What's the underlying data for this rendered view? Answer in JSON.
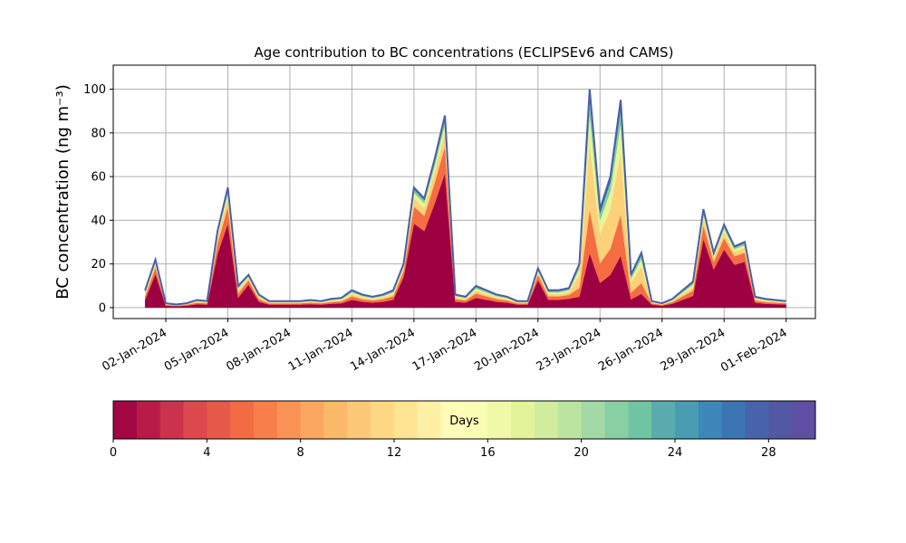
{
  "chart_data": {
    "type": "stacked_area",
    "title": "Age contribution to BC concentrations (ECLIPSEv6 and CAMS)",
    "y_label": "BC concentration (ng m⁻³)",
    "x": [
      "2024-01-01T00:00",
      "2024-01-01T12:00",
      "2024-01-02T00:00",
      "2024-01-02T12:00",
      "2024-01-03T00:00",
      "2024-01-03T12:00",
      "2024-01-04T00:00",
      "2024-01-04T12:00",
      "2024-01-05T00:00",
      "2024-01-05T12:00",
      "2024-01-06T00:00",
      "2024-01-06T12:00",
      "2024-01-07T00:00",
      "2024-01-07T12:00",
      "2024-01-08T00:00",
      "2024-01-08T12:00",
      "2024-01-09T00:00",
      "2024-01-09T12:00",
      "2024-01-10T00:00",
      "2024-01-10T12:00",
      "2024-01-11T00:00",
      "2024-01-11T12:00",
      "2024-01-12T00:00",
      "2024-01-12T12:00",
      "2024-01-13T00:00",
      "2024-01-13T12:00",
      "2024-01-14T00:00",
      "2024-01-14T12:00",
      "2024-01-15T00:00",
      "2024-01-15T12:00",
      "2024-01-16T00:00",
      "2024-01-16T12:00",
      "2024-01-17T00:00",
      "2024-01-17T12:00",
      "2024-01-18T00:00",
      "2024-01-18T12:00",
      "2024-01-19T00:00",
      "2024-01-19T12:00",
      "2024-01-20T00:00",
      "2024-01-20T12:00",
      "2024-01-21T00:00",
      "2024-01-21T12:00",
      "2024-01-22T00:00",
      "2024-01-22T12:00",
      "2024-01-23T00:00",
      "2024-01-23T12:00",
      "2024-01-24T00:00",
      "2024-01-24T12:00",
      "2024-01-25T00:00",
      "2024-01-25T12:00",
      "2024-01-26T00:00",
      "2024-01-26T12:00",
      "2024-01-27T00:00",
      "2024-01-27T12:00",
      "2024-01-28T00:00",
      "2024-01-28T12:00",
      "2024-01-29T00:00",
      "2024-01-29T12:00",
      "2024-01-30T00:00",
      "2024-01-30T12:00",
      "2024-01-31T00:00",
      "2024-01-31T12:00",
      "2024-02-01T00:00"
    ],
    "series": [
      {
        "color": "#9e0142",
        "values": [
          3.6,
          15.4,
          0.9,
          0.7,
          0.9,
          1.6,
          1.4,
          24.5,
          38.5,
          4.5,
          10.5,
          2.7,
          1.4,
          1.4,
          1.4,
          1.4,
          1.6,
          1.4,
          1.8,
          2.0,
          3.6,
          2.7,
          2.3,
          2.7,
          3.6,
          14.0,
          38.5,
          35.0,
          47.6,
          61.6,
          2.7,
          2.3,
          4.5,
          3.6,
          2.7,
          2.3,
          1.4,
          1.4,
          12.6,
          3.6,
          3.6,
          4.1,
          5.0,
          25,
          11.3,
          15,
          23.8,
          3.8,
          6.3,
          1.4,
          0.9,
          1.8,
          3.6,
          5.4,
          31.5,
          17.5,
          26.6,
          19.6,
          21.0,
          2.3,
          1.8,
          1.6,
          1.4
        ]
      },
      {
        "color": "#f46d43",
        "values": [
          1.6,
          3.1,
          0.4,
          0.3,
          0.4,
          0.7,
          0.6,
          4.9,
          7.7,
          2.0,
          2.1,
          1.2,
          0.6,
          0.6,
          0.6,
          0.6,
          0.7,
          0.6,
          0.8,
          0.9,
          1.6,
          1.2,
          1.0,
          1.2,
          1.6,
          2.8,
          7.7,
          7.0,
          9.5,
          12.3,
          1.2,
          1.0,
          2.0,
          1.6,
          1.2,
          1.0,
          0.6,
          0.6,
          2.5,
          1.6,
          1.6,
          1.8,
          4.0,
          20,
          9.0,
          12,
          19.0,
          3.0,
          5.0,
          0.6,
          0.4,
          0.8,
          1.6,
          2.4,
          6.3,
          3.5,
          5.3,
          3.9,
          4.2,
          1.0,
          0.8,
          0.7,
          0.6
        ]
      },
      {
        "color": "#fdd07a",
        "values": [
          1.0,
          1.5,
          0.3,
          0.2,
          0.3,
          0.5,
          0.4,
          2.5,
          3.9,
          1.3,
          1.1,
          0.8,
          0.4,
          0.4,
          0.4,
          0.4,
          0.5,
          0.4,
          0.5,
          0.6,
          1.0,
          0.8,
          0.7,
          0.8,
          1.0,
          1.4,
          3.9,
          3.5,
          4.8,
          6.2,
          0.8,
          0.7,
          1.3,
          1.0,
          0.8,
          0.7,
          0.4,
          0.4,
          1.3,
          1.0,
          1.0,
          1.2,
          6.0,
          30,
          13.5,
          18,
          28.5,
          4.5,
          7.5,
          0.4,
          0.3,
          0.5,
          1.0,
          1.6,
          3.2,
          1.8,
          2.7,
          2.0,
          2.1,
          0.7,
          0.5,
          0.5,
          0.4
        ]
      },
      {
        "color": "#e6f598",
        "values": [
          0.8,
          1.0,
          0.2,
          0.1,
          0.2,
          0.3,
          0.3,
          1.6,
          2.5,
          1.0,
          0.7,
          0.6,
          0.3,
          0.3,
          0.3,
          0.3,
          0.3,
          0.3,
          0.4,
          0.5,
          0.8,
          0.6,
          0.5,
          0.6,
          0.8,
          0.9,
          2.5,
          2.3,
          3.1,
          4.0,
          0.6,
          0.5,
          1.0,
          0.8,
          0.6,
          0.5,
          0.3,
          0.3,
          0.8,
          0.8,
          0.8,
          0.9,
          2.8,
          14,
          6.3,
          8.4,
          13.3,
          2.1,
          3.5,
          0.3,
          0.2,
          0.4,
          0.8,
          1.2,
          2.0,
          1.1,
          1.7,
          1.3,
          1.4,
          0.5,
          0.4,
          0.3,
          0.3
        ]
      },
      {
        "color": "#7fcca4",
        "values": [
          0.6,
          0.7,
          0.1,
          0.1,
          0.1,
          0.2,
          0.2,
          1.0,
          1.6,
          0.7,
          0.4,
          0.4,
          0.2,
          0.2,
          0.2,
          0.2,
          0.2,
          0.2,
          0.3,
          0.3,
          0.6,
          0.4,
          0.3,
          0.4,
          0.6,
          0.6,
          1.6,
          1.5,
          2.0,
          2.6,
          0.4,
          0.3,
          0.7,
          0.6,
          0.4,
          0.3,
          0.2,
          0.2,
          0.5,
          0.6,
          0.6,
          0.6,
          1.4,
          7,
          3.2,
          4.2,
          6.7,
          1.1,
          1.8,
          0.2,
          0.1,
          0.3,
          0.6,
          0.8,
          1.4,
          0.8,
          1.1,
          0.8,
          0.9,
          0.3,
          0.3,
          0.2,
          0.2
        ]
      },
      {
        "color": "#4b65ae",
        "values": [
          0.4,
          0.3,
          0.1,
          0.1,
          0.1,
          0.2,
          0.1,
          0.5,
          0.8,
          0.5,
          0.2,
          0.3,
          0.1,
          0.1,
          0.1,
          0.1,
          0.2,
          0.1,
          0.2,
          0.2,
          0.4,
          0.3,
          0.2,
          0.3,
          0.4,
          0.3,
          0.8,
          0.7,
          1.0,
          1.3,
          0.3,
          0.2,
          0.5,
          0.4,
          0.3,
          0.2,
          0.1,
          0.1,
          0.3,
          0.4,
          0.4,
          0.4,
          0.8,
          4,
          1.8,
          2.4,
          3.8,
          0.6,
          1.0,
          0.1,
          0.1,
          0.2,
          0.4,
          0.6,
          0.7,
          0.4,
          0.6,
          0.4,
          0.5,
          0.2,
          0.2,
          0.2,
          0.1
        ]
      }
    ],
    "xlim": [
      "2023-12-30T11:00",
      "2024-02-02T10:00"
    ],
    "xticks": [
      {
        "value": "2024-01-02T00:00",
        "label": "02-Jan-2024"
      },
      {
        "value": "2024-01-05T00:00",
        "label": "05-Jan-2024"
      },
      {
        "value": "2024-01-08T00:00",
        "label": "08-Jan-2024"
      },
      {
        "value": "2024-01-11T00:00",
        "label": "11-Jan-2024"
      },
      {
        "value": "2024-01-14T00:00",
        "label": "14-Jan-2024"
      },
      {
        "value": "2024-01-17T00:00",
        "label": "17-Jan-2024"
      },
      {
        "value": "2024-01-20T00:00",
        "label": "20-Jan-2024"
      },
      {
        "value": "2024-01-23T00:00",
        "label": "23-Jan-2024"
      },
      {
        "value": "2024-01-26T00:00",
        "label": "26-Jan-2024"
      },
      {
        "value": "2024-01-29T00:00",
        "label": "29-Jan-2024"
      },
      {
        "value": "2024-02-01T00:00",
        "label": "01-Feb-2024"
      }
    ],
    "ylim": [
      -5,
      111
    ],
    "yticks": [
      0,
      20,
      40,
      60,
      80,
      100
    ],
    "grid": true,
    "outline_color": "#4a5fa8",
    "colorbar": {
      "label": "Days",
      "lim": [
        0,
        30
      ],
      "ticks": [
        0,
        4,
        8,
        12,
        16,
        20,
        24,
        28
      ],
      "colors": [
        "#a20643",
        "#b81b47",
        "#cb334c",
        "#dc494c",
        "#e75948",
        "#f26b43",
        "#f67f4b",
        "#f99355",
        "#fba760",
        "#fdb96a",
        "#fdc877",
        "#fed885",
        "#fee593",
        "#fff0a6",
        "#fffbb8",
        "#f8fcb4",
        "#f0f9a8",
        "#e3f399",
        "#d1ec9c",
        "#bbe4a0",
        "#a3d9a4",
        "#89cfa4",
        "#70c4a4",
        "#5aabad",
        "#4a9cb3",
        "#3d88b9",
        "#3b75b2",
        "#4863ab",
        "#5358a4",
        "#5e4fa2"
      ]
    }
  }
}
